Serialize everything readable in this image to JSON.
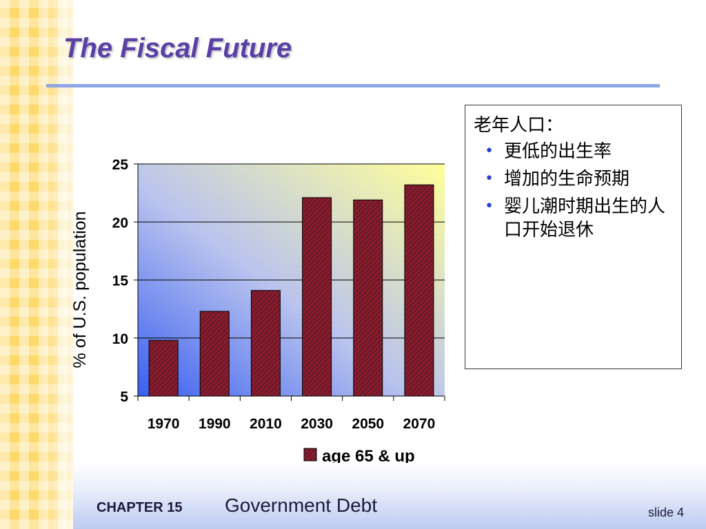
{
  "slide": {
    "title": "The Fiscal Future"
  },
  "textbox": {
    "heading": "老年人口：",
    "bullets": [
      "更低的出生率",
      "增加的生命预期",
      "婴儿潮时期出生的人口开始退休"
    ],
    "bullet_color": "#2a3fd0"
  },
  "footer": {
    "chapter": "CHAPTER 15",
    "subject": "Government Debt",
    "slide_label": "slide 4"
  },
  "colors": {
    "title": "#5a3fa6",
    "title_rule": "#8ea6e6",
    "stripe": "#fdd86a",
    "bar_fill": "#8b1a1a",
    "plot_gradient_from": "#3a5ff0",
    "plot_gradient_to": "#ffff9a"
  },
  "chart_data": {
    "type": "bar",
    "categories": [
      "1970",
      "1990",
      "2010",
      "2030",
      "2050",
      "2070"
    ],
    "series": [
      {
        "name": "age 65 & up",
        "values": [
          9.8,
          12.3,
          14.1,
          22.1,
          21.9,
          23.2
        ]
      }
    ],
    "ylabel": "% of U.S. population",
    "ylim": [
      5,
      25
    ],
    "yticks": [
      5,
      10,
      15,
      20,
      25
    ],
    "grid": true,
    "legend": "bottom-right"
  }
}
